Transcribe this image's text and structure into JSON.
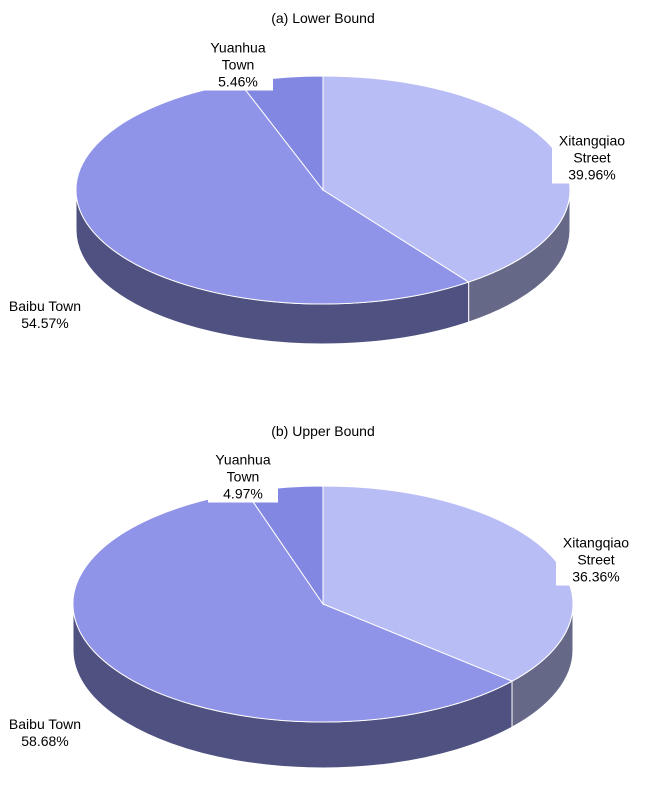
{
  "chart_data": [
    {
      "type": "pie",
      "title": "(a) Lower Bound",
      "categories": [
        "Xitangqiao Street",
        "Baibu Town",
        "Yuanhua Town"
      ],
      "values": [
        39.96,
        54.57,
        5.46
      ],
      "value_labels": [
        "39.96%",
        "54.57%",
        "5.46%"
      ],
      "colors": [
        "#b9bdf5",
        "#9094e8",
        "#8287e2"
      ]
    },
    {
      "type": "pie",
      "title": "(b) Upper Bound",
      "categories": [
        "Xitangqiao Street",
        "Baibu Town",
        "Yuanhua Town"
      ],
      "values": [
        36.36,
        58.68,
        4.97
      ],
      "value_labels": [
        "36.36%",
        "58.68%",
        "4.97%"
      ],
      "colors": [
        "#b9bdf5",
        "#9094e8",
        "#8287e2"
      ]
    }
  ]
}
